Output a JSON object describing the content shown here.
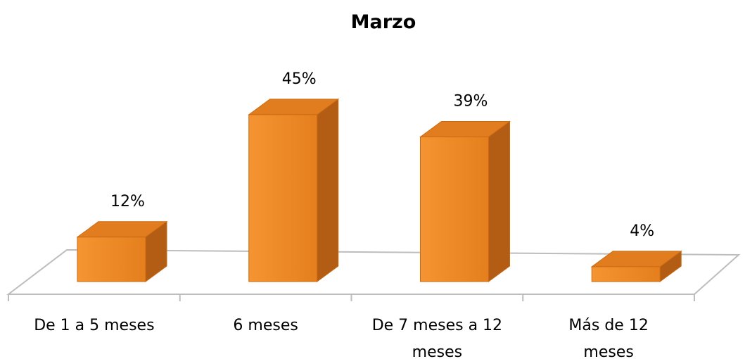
{
  "chart_data": {
    "type": "bar3d",
    "title": "Marzo",
    "categories": [
      "De 1 a 5 meses",
      "6 meses",
      "De 7 meses a 12 meses",
      "Más de 12 meses"
    ],
    "values": [
      12,
      45,
      39,
      4
    ],
    "value_labels": [
      "12%",
      "45%",
      "39%",
      "4%"
    ],
    "color": "#f28b25"
  }
}
